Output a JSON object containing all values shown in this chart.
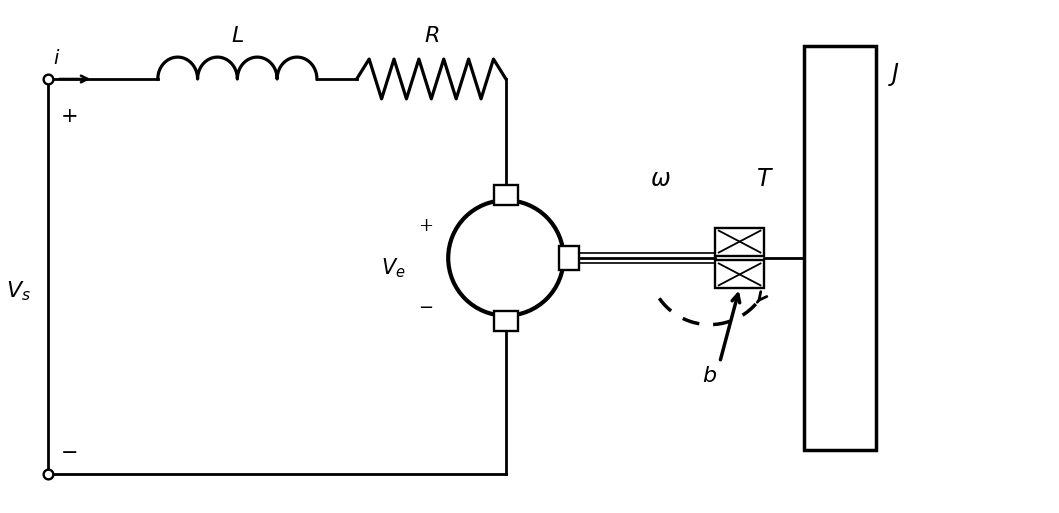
{
  "figsize": [
    10.59,
    5.13
  ],
  "dpi": 100,
  "labels": {
    "i": "$i$",
    "L": "$L$",
    "R": "$R$",
    "Vs": "$V_s$",
    "Ve": "$V_e$",
    "omega": "$\\omega$",
    "T": "$T$",
    "b": "$b$",
    "J": "$J$",
    "plus": "+",
    "minus": "$-$"
  },
  "colors": {
    "main": "#000000",
    "background": "#ffffff"
  },
  "lw": 2.0
}
